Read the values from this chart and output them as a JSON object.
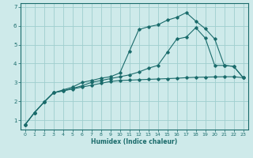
{
  "xlabel": "Humidex (Indice chaleur)",
  "bg_color": "#ceeaea",
  "grid_color": "#9fcece",
  "line_color": "#1a6b6b",
  "xlim": [
    -0.5,
    23.5
  ],
  "ylim": [
    0.5,
    7.2
  ],
  "xticks": [
    0,
    1,
    2,
    3,
    4,
    5,
    6,
    7,
    8,
    9,
    10,
    11,
    12,
    13,
    14,
    15,
    16,
    17,
    18,
    19,
    20,
    21,
    22,
    23
  ],
  "yticks": [
    1,
    2,
    3,
    4,
    5,
    6,
    7
  ],
  "line1_x": [
    0,
    1,
    2,
    3,
    4,
    5,
    6,
    7,
    8,
    9,
    10,
    11,
    12,
    13,
    14,
    15,
    16,
    17,
    18,
    19,
    20,
    21,
    22,
    23
  ],
  "line1_y": [
    0.75,
    1.4,
    1.95,
    2.45,
    2.55,
    2.65,
    2.75,
    2.85,
    2.95,
    3.05,
    3.1,
    3.12,
    3.14,
    3.16,
    3.18,
    3.2,
    3.22,
    3.25,
    3.27,
    3.28,
    3.29,
    3.3,
    3.3,
    3.25
  ],
  "line2_x": [
    0,
    1,
    2,
    3,
    4,
    5,
    6,
    7,
    8,
    9,
    10,
    11,
    12,
    13,
    14,
    15,
    16,
    17,
    18,
    19,
    20,
    21,
    22,
    23
  ],
  "line2_y": [
    0.75,
    1.4,
    1.95,
    2.45,
    2.55,
    2.68,
    2.82,
    3.0,
    3.1,
    3.2,
    3.3,
    3.4,
    3.55,
    3.75,
    3.9,
    4.6,
    5.3,
    5.4,
    5.9,
    5.35,
    3.9,
    3.9,
    3.85,
    3.25
  ],
  "line3_x": [
    0,
    1,
    2,
    3,
    4,
    5,
    6,
    7,
    8,
    9,
    10,
    11,
    12,
    13,
    14,
    15,
    16,
    17,
    18,
    19,
    20,
    21,
    22,
    23
  ],
  "line3_y": [
    0.75,
    1.4,
    1.95,
    2.45,
    2.6,
    2.75,
    3.0,
    3.1,
    3.22,
    3.3,
    3.5,
    4.65,
    5.8,
    5.95,
    6.05,
    6.3,
    6.45,
    6.7,
    6.25,
    5.85,
    5.3,
    3.9,
    3.85,
    3.25
  ]
}
